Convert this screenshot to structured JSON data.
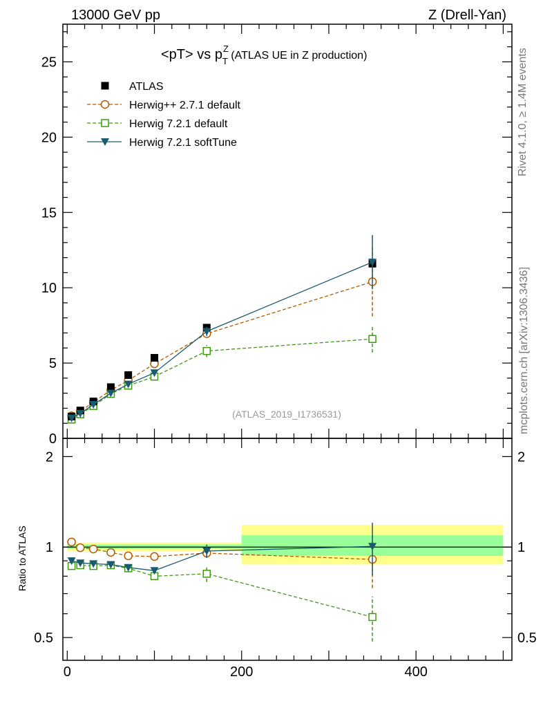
{
  "header": {
    "left": "13000 GeV pp",
    "right": "Z (Drell-Yan)",
    "side_top": "Rivet 4.1.0, ≥ 1.4M events",
    "side_bottom": "mcplots.cern.ch [arXiv:1306.3436]"
  },
  "title": {
    "main": "<pT> vs p",
    "sup": "Z",
    "sub": "T",
    "suffix": " (ATLAS UE in Z production)"
  },
  "analysis_tag": "(ATLAS_2019_I1736531)",
  "colors": {
    "data": "#000000",
    "herwigpp": "#b35900",
    "herwig721": "#3b9a0f",
    "softtune": "#1a5a6e",
    "band_yellow": "#ffff8c",
    "band_green": "#99ff99"
  },
  "chart_data": [
    {
      "type": "line",
      "title": "<pT> vs pT^Z (ATLAS UE in Z production)",
      "xlabel": "",
      "ylabel": "",
      "xlim": [
        -5,
        510
      ],
      "ylim": [
        0,
        27.5
      ],
      "yticks": [
        "0",
        "5",
        "10",
        "15",
        "20",
        "25"
      ],
      "ytick_values": [
        0,
        5,
        10,
        15,
        20,
        25
      ],
      "x": [
        5,
        15,
        30,
        50,
        70,
        100,
        160,
        350
      ],
      "legend": {
        "placement": "top-left"
      },
      "series": [
        {
          "name": "ATLAS",
          "marker": "filled-square",
          "values": [
            1.45,
            1.85,
            2.45,
            3.4,
            4.2,
            5.35,
            7.35,
            11.6
          ]
        },
        {
          "name": "Herwig++ 2.7.1 default",
          "marker": "open-circle",
          "line": "dashed",
          "values": [
            1.5,
            1.8,
            2.4,
            3.2,
            3.85,
            4.95,
            6.95,
            10.4
          ],
          "err": [
            0.05,
            0.05,
            0.05,
            0.05,
            0.05,
            0.1,
            0.15,
            2.3
          ]
        },
        {
          "name": "Herwig 7.2.1 default",
          "marker": "open-square",
          "line": "dashed",
          "values": [
            1.25,
            1.6,
            2.15,
            2.95,
            3.5,
            4.1,
            5.8,
            6.6
          ],
          "err": [
            0.05,
            0.05,
            0.05,
            0.05,
            0.05,
            0.1,
            0.4,
            0.9
          ]
        },
        {
          "name": "Herwig 7.2.1 softTune",
          "marker": "filled-triangle-down",
          "line": "solid",
          "values": [
            1.35,
            1.65,
            2.25,
            3.0,
            3.6,
            4.35,
            7.1,
            11.7
          ],
          "err": [
            0.05,
            0.05,
            0.05,
            0.05,
            0.05,
            0.1,
            0.3,
            1.8
          ]
        }
      ]
    },
    {
      "type": "line",
      "title": "",
      "xlabel": "",
      "ylabel": "Ratio to ATLAS",
      "xlim": [
        -5,
        510
      ],
      "ylim": [
        0.42,
        2.3
      ],
      "scale": "log",
      "yticks": [
        "0.5",
        "1",
        "2"
      ],
      "ytick_values": [
        0.5,
        1,
        2
      ],
      "xticks": [
        "0",
        "200",
        "400"
      ],
      "xtick_values": [
        0,
        200,
        400
      ],
      "x": [
        5,
        15,
        30,
        50,
        70,
        100,
        160,
        350
      ],
      "bands": {
        "edges": [
          0,
          200,
          500
        ],
        "yellow": [
          [
            0.97,
            1.035
          ],
          [
            0.875,
            1.185
          ]
        ],
        "green": [
          [
            0.985,
            1.02
          ],
          [
            0.935,
            1.095
          ]
        ]
      },
      "series": [
        {
          "name": "Herwig++ 2.7.1 default",
          "values": [
            1.04,
            0.995,
            0.985,
            0.96,
            0.935,
            0.93,
            0.955,
            0.91
          ],
          "err": [
            0.01,
            0.01,
            0.01,
            0.01,
            0.01,
            0.015,
            0.03,
            0.18
          ]
        },
        {
          "name": "Herwig 7.2.1 default",
          "values": [
            0.865,
            0.87,
            0.865,
            0.87,
            0.85,
            0.8,
            0.815,
            0.585
          ],
          "err": [
            0.01,
            0.01,
            0.01,
            0.01,
            0.01,
            0.015,
            0.05,
            0.1
          ]
        },
        {
          "name": "Herwig 7.2.1 softTune",
          "values": [
            0.9,
            0.885,
            0.88,
            0.875,
            0.855,
            0.835,
            0.97,
            1.005
          ],
          "err": [
            0.01,
            0.01,
            0.01,
            0.01,
            0.01,
            0.015,
            0.05,
            0.2
          ]
        }
      ]
    }
  ]
}
